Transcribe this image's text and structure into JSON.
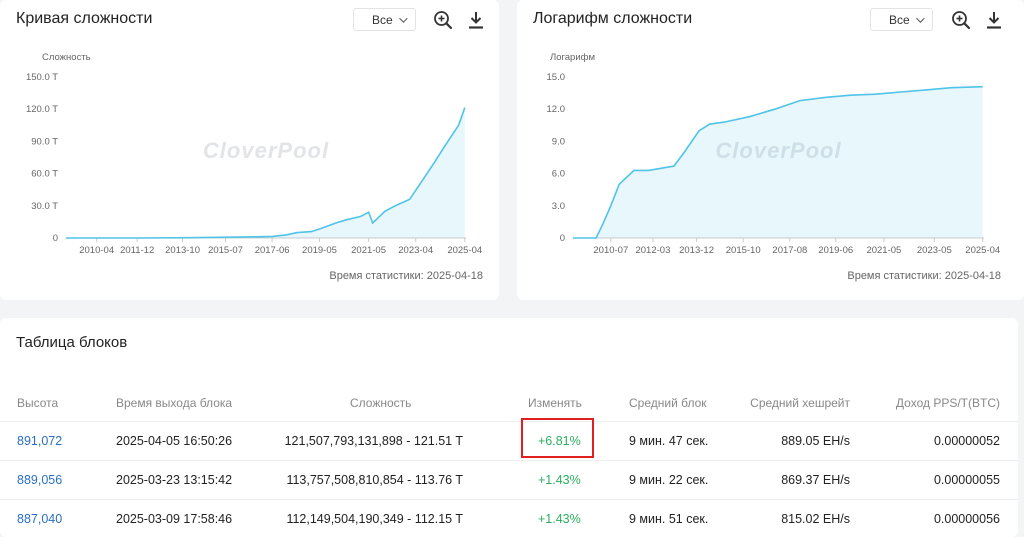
{
  "difficulty_card": {
    "title": "Кривая сложности",
    "select_value": "Все",
    "ylabel": "Сложность",
    "stat_time": "Время статистики: 2025-04-18"
  },
  "log_card": {
    "title": "Логарифм сложности",
    "select_value": "Все",
    "ylabel": "Логарифм",
    "stat_time": "Время статистики: 2025-04-18"
  },
  "watermark": "CloverPool",
  "chart_data": [
    {
      "type": "area",
      "title": "Кривая сложности",
      "ylabel": "Сложность",
      "yticks": [
        "0",
        "30.0 T",
        "60.0 T",
        "90.0 T",
        "120.0 T",
        "150.0 T"
      ],
      "xticks": [
        "2010-04",
        "2011-12",
        "2013-10",
        "2015-07",
        "2017-06",
        "2019-05",
        "2021-05",
        "2023-04",
        "2025-04"
      ],
      "ylim": [
        0,
        150
      ],
      "x": [
        "2009-01",
        "2012-01",
        "2014-01",
        "2016-01",
        "2017-06",
        "2018-01",
        "2018-06",
        "2019-01",
        "2019-06",
        "2020-01",
        "2020-06",
        "2021-01",
        "2021-05",
        "2021-07",
        "2022-01",
        "2022-06",
        "2023-01",
        "2023-06",
        "2024-01",
        "2024-06",
        "2025-01",
        "2025-04"
      ],
      "values": [
        0,
        0,
        0.3,
        0.8,
        1.5,
        3,
        5,
        6,
        9,
        14,
        17,
        20,
        24,
        14,
        25,
        30,
        36,
        50,
        70,
        85,
        105,
        121.5
      ],
      "color": "#4fc3e8",
      "grid": false
    },
    {
      "type": "area",
      "title": "Логарифм сложности",
      "ylabel": "Логарифм",
      "yticks": [
        "0",
        "3.0",
        "6.0",
        "9.0",
        "12.0",
        "15.0"
      ],
      "xticks": [
        "2010-07",
        "2012-03",
        "2013-12",
        "2015-10",
        "2017-08",
        "2019-06",
        "2021-05",
        "2023-05",
        "2025-04"
      ],
      "ylim": [
        0,
        15
      ],
      "x": [
        "2009-01",
        "2009-12",
        "2010-03",
        "2010-07",
        "2010-11",
        "2011-06",
        "2012-01",
        "2013-01",
        "2013-06",
        "2014-01",
        "2014-06",
        "2015-01",
        "2016-01",
        "2017-01",
        "2018-01",
        "2019-01",
        "2020-01",
        "2021-01",
        "2022-01",
        "2023-01",
        "2024-01",
        "2025-04"
      ],
      "values": [
        0,
        0,
        1.2,
        3,
        5,
        6.3,
        6.3,
        6.7,
        8,
        10,
        10.6,
        10.8,
        11.3,
        12,
        12.8,
        13.1,
        13.3,
        13.4,
        13.6,
        13.8,
        14.0,
        14.1
      ],
      "color": "#4fc3e8",
      "grid": false
    }
  ],
  "table": {
    "title": "Таблица блоков",
    "headers": {
      "height": "Высота",
      "time": "Время выхода блока",
      "difficulty": "Сложность",
      "change": "Изменять",
      "avg_block": "Средний блок",
      "avg_hashrate": "Средний хешрейт",
      "pps": "Доход PPS/T(BTC)"
    },
    "rows": [
      {
        "height": "891,072",
        "time": "2025-04-05 16:50:26",
        "difficulty": "121,507,793,131,898 - 121.51 T",
        "change": "+6.81%",
        "avg_block": "9 мин. 47 сек.",
        "avg_hashrate": "889.05 EH/s",
        "pps": "0.00000052"
      },
      {
        "height": "889,056",
        "time": "2025-03-23 13:15:42",
        "difficulty": "113,757,508,810,854 - 113.76 T",
        "change": "+1.43%",
        "avg_block": "9 мин. 22 сек.",
        "avg_hashrate": "869.37 EH/s",
        "pps": "0.00000055"
      },
      {
        "height": "887,040",
        "time": "2025-03-09 17:58:46",
        "difficulty": "112,149,504,190,349 - 112.15 T",
        "change": "+1.43%",
        "avg_block": "9 мин. 51 сек.",
        "avg_hashrate": "815.02 EH/s",
        "pps": "0.00000056"
      }
    ]
  }
}
